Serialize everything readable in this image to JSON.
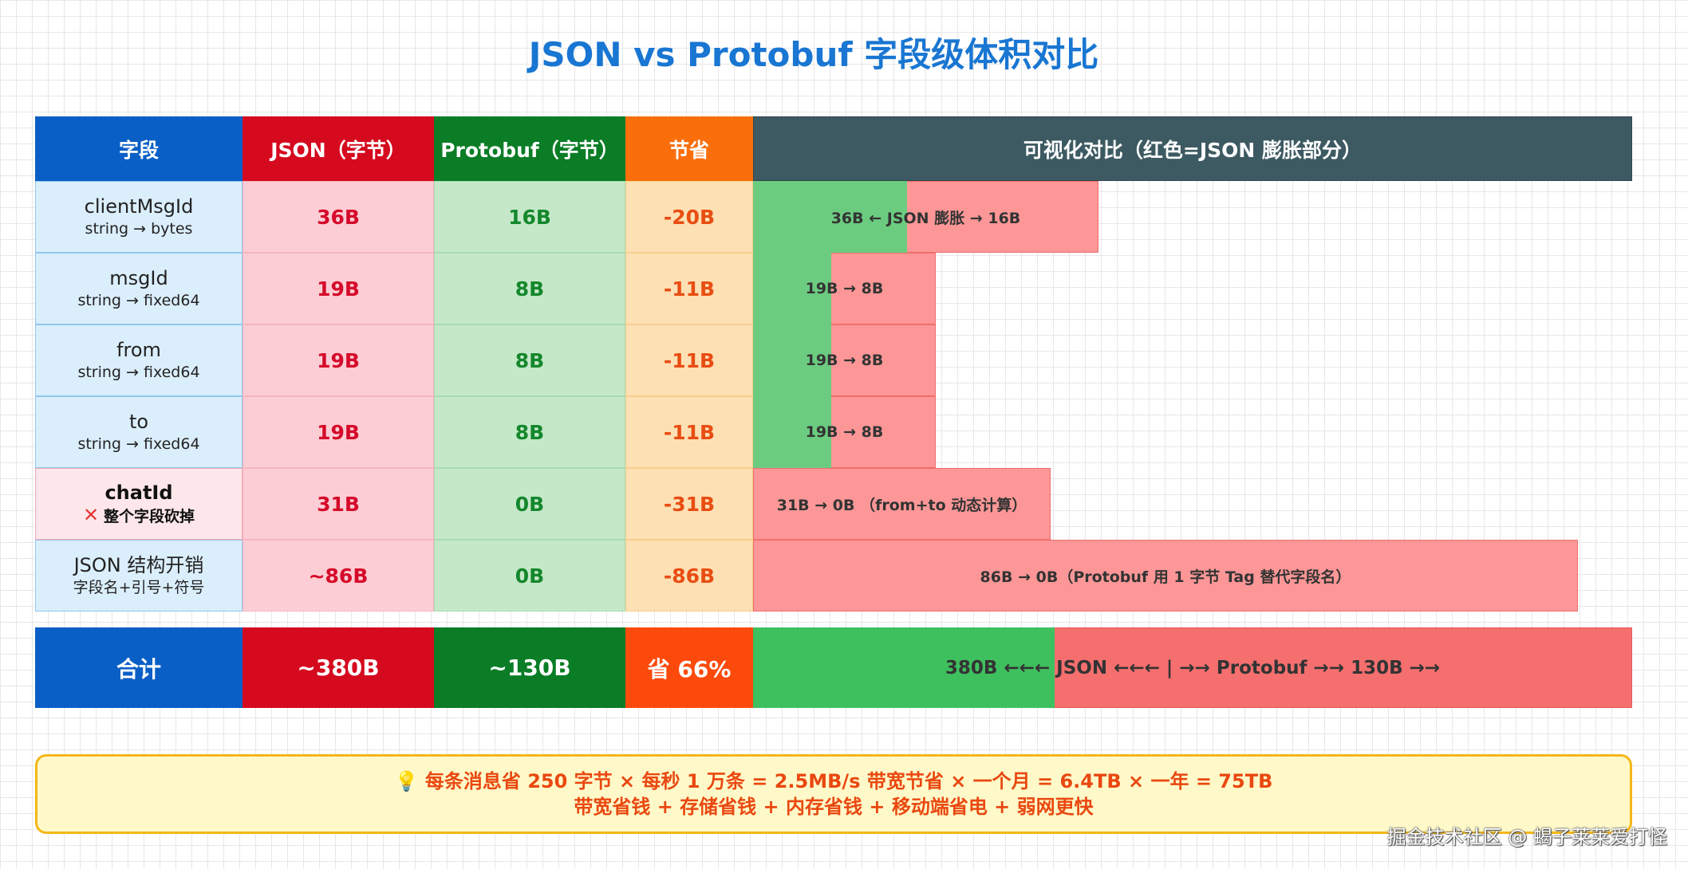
{
  "title": "JSON vs Protobuf 字段级体积对比",
  "header": {
    "field": "字段",
    "json": "JSON（字节）",
    "protobuf": "Protobuf（字节）",
    "save": "节省",
    "visual": "可视化对比（红色=JSON 膨胀部分）"
  },
  "rows": [
    {
      "name": "clientMsgId",
      "type": "string → bytes",
      "json": "36B",
      "protobuf": "16B",
      "save": "-20B",
      "bar": "36B ← JSON 膨胀 → 16B"
    },
    {
      "name": "msgId",
      "type": "string → fixed64",
      "json": "19B",
      "protobuf": "8B",
      "save": "-11B",
      "bar": "19B → 8B"
    },
    {
      "name": "from",
      "type": "string → fixed64",
      "json": "19B",
      "protobuf": "8B",
      "save": "-11B",
      "bar": "19B → 8B"
    },
    {
      "name": "to",
      "type": "string → fixed64",
      "json": "19B",
      "protobuf": "8B",
      "save": "-11B",
      "bar": "19B → 8B"
    },
    {
      "name": "chatId",
      "type": "整个字段砍掉",
      "json": "31B",
      "protobuf": "0B",
      "save": "-31B",
      "bar": "31B → 0B （from+to 动态计算）"
    },
    {
      "name": "JSON 结构开销",
      "type": "字段名+引号+符号",
      "json": "~86B",
      "protobuf": "0B",
      "save": "-86B",
      "bar": "86B → 0B（Protobuf 用 1 字节 Tag 替代字段名）"
    }
  ],
  "total": {
    "label": "合计",
    "json": "~380B",
    "protobuf": "~130B",
    "save": "省 66%",
    "bar": "380B ←←← JSON ←←← | →→ Protobuf →→ 130B →→"
  },
  "note": {
    "icon": "lightbulb-icon",
    "line1": "💡 每条消息省 250 字节 × 每秒 1 万条 = 2.5MB/s 带宽节省 × 一个月 = 6.4TB × 一年 = 75TB",
    "line2": "带宽省钱 + 存储省钱 + 内存省钱 + 移动端省电 + 弱网更快"
  },
  "watermark": "掘金技术社区 @ 蝎子莱莱爱打怪",
  "colors": {
    "title": "#1976d2",
    "field_header": "#0a5fc6",
    "json_header": "#d50a1f",
    "protobuf_header": "#0a7d26",
    "save_header": "#fa6f0c",
    "visual_header": "#3d5a62",
    "total_save": "#fb4a0c",
    "bar_red": "#fd9797",
    "bar_green": "#6bcc80"
  }
}
